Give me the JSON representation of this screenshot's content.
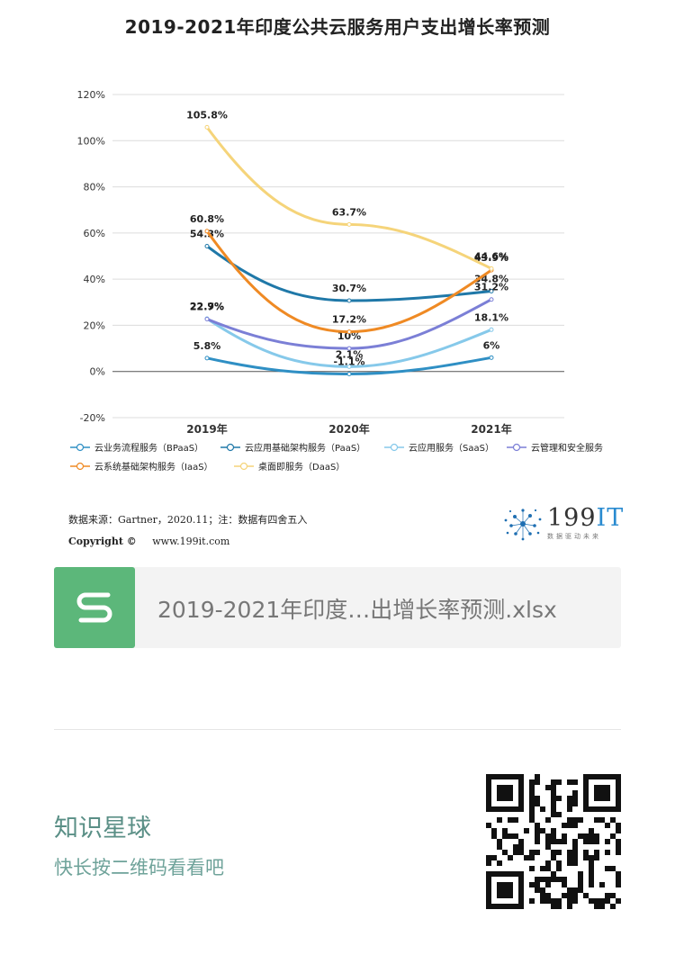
{
  "title": "2019-2021年印度公共云服务用户支出增长率预测",
  "chart_data": {
    "type": "line",
    "categories": [
      "2019年",
      "2020年",
      "2021年"
    ],
    "ylim": [
      -20,
      120
    ],
    "yticks": [
      "-20%",
      "0%",
      "20%",
      "40%",
      "60%",
      "80%",
      "100%",
      "120%"
    ],
    "yvalues": [
      -20,
      0,
      20,
      40,
      60,
      80,
      100,
      120
    ],
    "grid": true,
    "legend_position": "bottom",
    "series": [
      {
        "name": "云业务流程服务（BPaaS）",
        "color": "#2f8fc4",
        "values": [
          5.8,
          -1.1,
          6
        ],
        "labels": [
          "5.8%",
          "-1.1%",
          "6%"
        ]
      },
      {
        "name": "云应用基础架构服务（PaaS）",
        "color": "#1f78a8",
        "values": [
          54.3,
          30.7,
          34.8
        ],
        "labels": [
          "54.3%",
          "30.7%",
          "34.8%"
        ]
      },
      {
        "name": "云应用服务（SaaS）",
        "color": "#86c9ea",
        "values": [
          22.9,
          2.1,
          18.1
        ],
        "labels": [
          "22.9%",
          "2.1%",
          "18.1%"
        ]
      },
      {
        "name": "云管理和安全服务",
        "color": "#7b7fd6",
        "values": [
          22.7,
          10,
          31.2
        ],
        "labels": [
          "22.7%",
          "10%",
          "31.2%"
        ]
      },
      {
        "name": "云系统基础架构服务（IaaS）",
        "color": "#ef8a24",
        "values": [
          60.8,
          17.2,
          43.9
        ],
        "labels": [
          "60.8%",
          "17.2%",
          "43.9%"
        ]
      },
      {
        "name": "桌面即服务（DaaS）",
        "color": "#f5d47a",
        "values": [
          105.8,
          63.7,
          44.6
        ],
        "labels": [
          "105.8%",
          "63.7%",
          "44.6%"
        ]
      }
    ]
  },
  "source_line": "数据来源：Gartner，2020.11；注：数据有四舍五入",
  "copyright_label": "Copyright ©",
  "copyright_url": "www.199it.com",
  "logo": {
    "text": "199",
    "text_accent": "IT",
    "sub": "数据驱动未来"
  },
  "file": {
    "name": "2019-2021年印度…出增长率预测.xlsx",
    "icon": "S"
  },
  "footer": {
    "planet": "知识星球",
    "hint": "快长按二维码看看吧"
  },
  "icons": {
    "file": "spreadsheet-icon",
    "qr": "qr-code-icon",
    "logo": "dandelion-logo-icon"
  }
}
